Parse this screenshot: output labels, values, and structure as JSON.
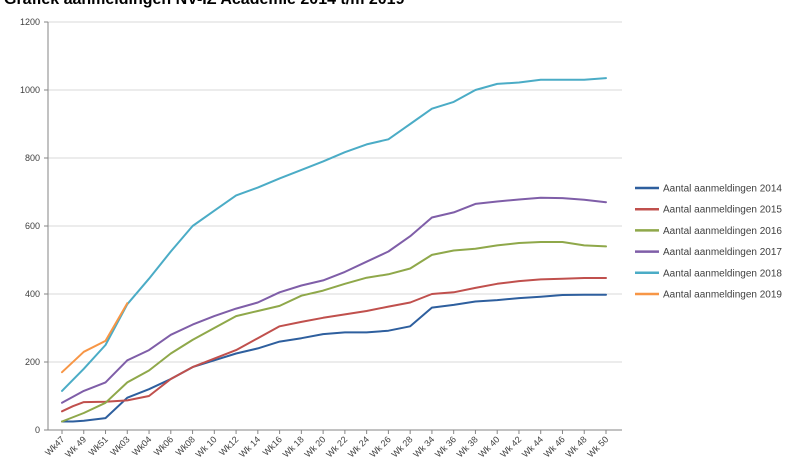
{
  "chart_data": {
    "type": "line",
    "title": "Grafiek aanmeldingen NV-IZ Academie 2014 t/m 2019",
    "xlabel": "",
    "ylabel": "",
    "ylim": [
      0,
      1200
    ],
    "yticks": [
      0,
      200,
      400,
      600,
      800,
      1000,
      1200
    ],
    "grid": true,
    "legend_position": "right",
    "categories": [
      "Wk47",
      "Wk 49",
      "Wk51",
      "Wk03",
      "Wk04",
      "Wk06",
      "Wk08",
      "Wk 10",
      "Wk12",
      "Wk 14",
      "Wk16",
      "Wk 18",
      "Wk 20",
      "Wk 22",
      "Wk 24",
      "Wk 26",
      "Wk 28",
      "Wk 34",
      "Wk 36",
      "Wk 38",
      "Wk 40",
      "Wk 42",
      "Wk 44",
      "Wk 46",
      "Wk 48",
      "Wk 50"
    ],
    "category_positions": [
      0,
      1,
      2,
      3,
      4,
      5,
      6,
      7,
      8,
      9,
      10,
      11,
      12,
      13,
      14,
      15,
      16,
      17,
      18,
      19,
      20,
      21,
      22,
      23,
      24,
      25
    ],
    "series": [
      {
        "name": "Aantal aanmeldingen 2014",
        "color": "#2e5f9e",
        "points": [
          [
            0,
            25
          ],
          [
            0.5,
            25
          ],
          [
            1,
            27
          ],
          [
            2,
            35
          ],
          [
            3,
            95
          ],
          [
            4,
            120
          ],
          [
            5,
            150
          ],
          [
            6,
            185
          ],
          [
            7,
            205
          ],
          [
            8,
            225
          ],
          [
            9,
            240
          ],
          [
            10,
            260
          ],
          [
            11,
            270
          ],
          [
            12,
            282
          ],
          [
            13,
            287
          ],
          [
            14,
            287
          ],
          [
            15,
            292
          ],
          [
            16,
            305
          ],
          [
            17,
            360
          ],
          [
            18,
            368
          ],
          [
            19,
            378
          ],
          [
            20,
            382
          ],
          [
            21,
            388
          ],
          [
            22,
            392
          ],
          [
            23,
            397
          ],
          [
            24,
            398
          ],
          [
            25,
            398
          ]
        ]
      },
      {
        "name": "Aantal aanmeldingen 2015",
        "color": "#c0504d",
        "points": [
          [
            0,
            55
          ],
          [
            0.5,
            70
          ],
          [
            1,
            82
          ],
          [
            2,
            83
          ],
          [
            3,
            87
          ],
          [
            4,
            100
          ],
          [
            5,
            150
          ],
          [
            6,
            185
          ],
          [
            7,
            210
          ],
          [
            8,
            235
          ],
          [
            9,
            270
          ],
          [
            10,
            305
          ],
          [
            11,
            318
          ],
          [
            12,
            330
          ],
          [
            13,
            340
          ],
          [
            14,
            350
          ],
          [
            15,
            363
          ],
          [
            16,
            375
          ],
          [
            17,
            400
          ],
          [
            18,
            405
          ],
          [
            19,
            418
          ],
          [
            20,
            430
          ],
          [
            21,
            438
          ],
          [
            22,
            443
          ],
          [
            23,
            445
          ],
          [
            24,
            447
          ],
          [
            25,
            447
          ]
        ]
      },
      {
        "name": "Aantal aanmeldingen 2016",
        "color": "#8fa84a",
        "points": [
          [
            0,
            25
          ],
          [
            1,
            50
          ],
          [
            2,
            80
          ],
          [
            3,
            140
          ],
          [
            4,
            175
          ],
          [
            5,
            225
          ],
          [
            6,
            265
          ],
          [
            7,
            300
          ],
          [
            8,
            335
          ],
          [
            9,
            350
          ],
          [
            10,
            365
          ],
          [
            11,
            395
          ],
          [
            12,
            410
          ],
          [
            13,
            430
          ],
          [
            14,
            448
          ],
          [
            15,
            458
          ],
          [
            16,
            475
          ],
          [
            17,
            515
          ],
          [
            18,
            528
          ],
          [
            19,
            533
          ],
          [
            20,
            543
          ],
          [
            21,
            550
          ],
          [
            22,
            553
          ],
          [
            23,
            553
          ],
          [
            24,
            543
          ],
          [
            25,
            540
          ]
        ]
      },
      {
        "name": "Aantal aanmeldingen 2017",
        "color": "#7f5ea8",
        "points": [
          [
            0,
            80
          ],
          [
            1,
            115
          ],
          [
            2,
            140
          ],
          [
            3,
            205
          ],
          [
            4,
            235
          ],
          [
            5,
            280
          ],
          [
            6,
            310
          ],
          [
            7,
            335
          ],
          [
            8,
            357
          ],
          [
            9,
            375
          ],
          [
            10,
            405
          ],
          [
            11,
            425
          ],
          [
            12,
            440
          ],
          [
            13,
            465
          ],
          [
            14,
            495
          ],
          [
            15,
            525
          ],
          [
            16,
            570
          ],
          [
            17,
            625
          ],
          [
            18,
            640
          ],
          [
            19,
            665
          ],
          [
            20,
            672
          ],
          [
            21,
            678
          ],
          [
            22,
            683
          ],
          [
            23,
            682
          ],
          [
            24,
            677
          ],
          [
            25,
            670
          ]
        ]
      },
      {
        "name": "Aantal aanmeldingen 2018",
        "color": "#4bacc6",
        "points": [
          [
            0,
            115
          ],
          [
            1,
            180
          ],
          [
            2,
            250
          ],
          [
            3,
            370
          ],
          [
            4,
            445
          ],
          [
            5,
            525
          ],
          [
            6,
            600
          ],
          [
            7,
            645
          ],
          [
            8,
            690
          ],
          [
            9,
            713
          ],
          [
            10,
            740
          ],
          [
            11,
            765
          ],
          [
            12,
            790
          ],
          [
            13,
            817
          ],
          [
            14,
            840
          ],
          [
            15,
            855
          ],
          [
            16,
            900
          ],
          [
            17,
            945
          ],
          [
            18,
            965
          ],
          [
            19,
            1000
          ],
          [
            20,
            1018
          ],
          [
            21,
            1022
          ],
          [
            22,
            1030
          ],
          [
            23,
            1030
          ],
          [
            24,
            1030
          ],
          [
            25,
            1035
          ]
        ]
      },
      {
        "name": "Aantal aanmeldingen 2019",
        "color": "#f79646",
        "points": [
          [
            0,
            170
          ],
          [
            1,
            230
          ],
          [
            2,
            262
          ],
          [
            3,
            373
          ]
        ]
      }
    ]
  }
}
